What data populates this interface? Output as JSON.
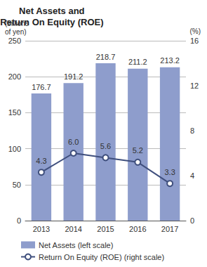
{
  "chart_data": {
    "type": "bar",
    "title": "Net Assets and\nReturn On Equity (ROE)",
    "y_label": "(billions\nof yen)",
    "y2_label": "(%)",
    "categories": [
      "2013",
      "2014",
      "2015",
      "2016",
      "2017"
    ],
    "series": [
      {
        "name": "Net Assets (left scale)",
        "type": "bar",
        "color": "#8e9dcc",
        "values": [
          176.7,
          191.2,
          218.7,
          211.2,
          213.2
        ],
        "data_labels": true
      },
      {
        "name": "Return On Equity (ROE) (right scale)",
        "type": "line",
        "axis": "y2",
        "color": "#3f4f7d",
        "marker": "circle",
        "values": [
          4.3,
          6.0,
          5.6,
          5.2,
          3.3
        ],
        "value_labels": [
          "4.3",
          "6.0",
          "5.6",
          "5.2",
          "3.3"
        ],
        "data_labels": true
      }
    ],
    "ylim": [
      0,
      250
    ],
    "yticks": [
      0,
      50,
      100,
      150,
      200,
      250
    ],
    "y2lim": [
      0,
      16
    ],
    "y2ticks": [
      0,
      4,
      8,
      12,
      16
    ],
    "grid": true,
    "legend": "bottom"
  }
}
